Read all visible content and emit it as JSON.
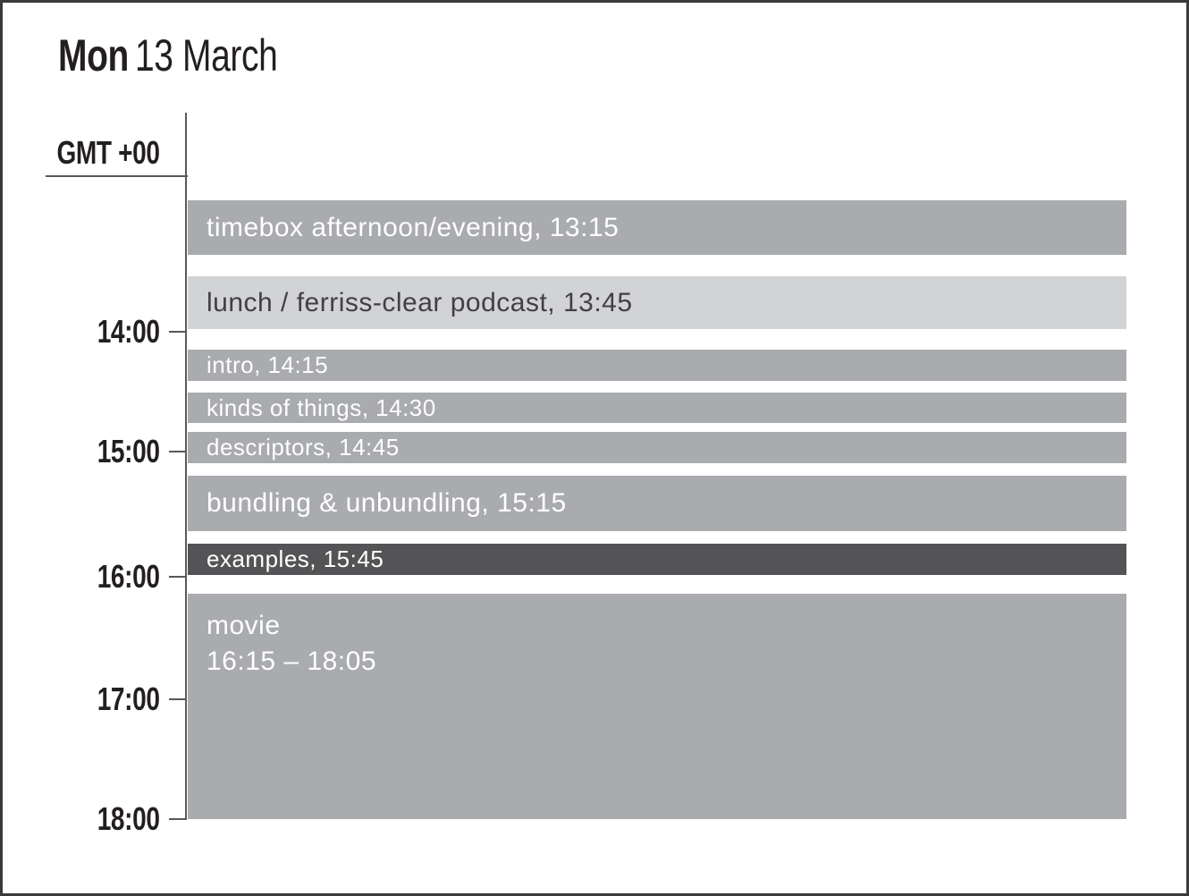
{
  "header": {
    "day": "Mon",
    "date": "13 March",
    "timezone": "GMT +00"
  },
  "axis": {
    "hours": [
      "14:00",
      "15:00",
      "16:00",
      "17:00",
      "18:00"
    ]
  },
  "events": [
    {
      "label": "timebox afternoon/evening, 13:15",
      "style": "medium"
    },
    {
      "label": "lunch / ferriss-clear podcast, 13:45",
      "style": "light"
    },
    {
      "label": "intro, 14:15",
      "style": "medium"
    },
    {
      "label": "kinds of things, 14:30",
      "style": "medium"
    },
    {
      "label": "descriptors, 14:45",
      "style": "medium"
    },
    {
      "label": "bundling & unbundling, 15:15",
      "style": "medium"
    },
    {
      "label": "examples, 15:45",
      "style": "dark"
    },
    {
      "title": "movie",
      "time_range": "16:15 – 18:05",
      "style": "medium"
    }
  ],
  "colors": {
    "event_medium": "#a9abae",
    "event_light": "#d2d3d5",
    "event_dark": "#545456",
    "event_text_light": "#ffffff",
    "event_text_dark": "#414042",
    "axis_stroke": "#58595b",
    "frame_border": "#3a3a3c",
    "heading_text": "#231f20",
    "background": "#ffffff"
  }
}
